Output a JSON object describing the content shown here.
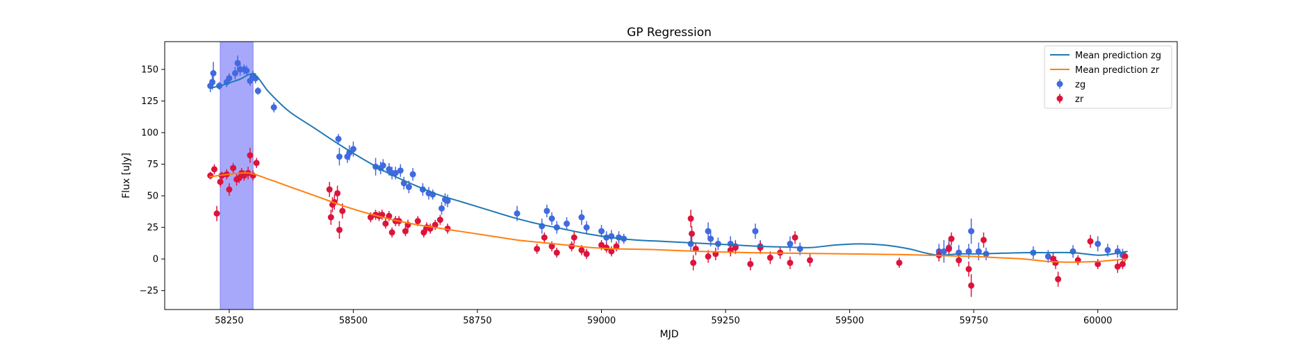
{
  "chart_data": {
    "type": "scatter",
    "title": "GP Regression",
    "xlabel": "MJD",
    "ylabel": "Flux [uJy]",
    "xlim": [
      58120,
      60160
    ],
    "ylim": [
      -40,
      172
    ],
    "xticks": [
      58250,
      58500,
      58750,
      59000,
      59250,
      59500,
      59750,
      60000
    ],
    "yticks": [
      -25,
      0,
      25,
      50,
      75,
      100,
      125,
      150
    ],
    "highlight_span": {
      "x0": 58232,
      "x1": 58298,
      "color": "#a8a8fa"
    },
    "colors": {
      "zg_line": "#1f77b4",
      "zr_line": "#ff7f0e",
      "zg_points": "#4169e1",
      "zr_points": "#dc143c"
    },
    "legend": {
      "location": "top-right",
      "entries": [
        "Mean prediction zg",
        "Mean prediction zr",
        "zg",
        "zr"
      ]
    },
    "series": [
      {
        "name": "Mean prediction zg",
        "kind": "line",
        "x": [
          58210,
          58240,
          58270,
          58300,
          58330,
          58370,
          58420,
          58470,
          58520,
          58570,
          58620,
          58670,
          58720,
          58770,
          58820,
          58870,
          58920,
          58970,
          59020,
          59070,
          59120,
          59170,
          59220,
          59270,
          59320,
          59370,
          59420,
          59470,
          59520,
          59570,
          59620,
          59650,
          59680,
          59720,
          59760,
          59800,
          59850,
          59900,
          59950,
          60000,
          60030,
          60060
        ],
        "y": [
          135,
          138,
          142,
          146,
          132,
          117,
          104,
          91,
          79,
          68,
          59,
          51,
          45,
          39,
          33,
          28,
          24,
          20,
          17,
          15,
          14,
          13,
          12,
          11,
          10,
          9.5,
          9,
          11,
          12,
          11,
          8,
          5,
          3,
          4,
          4,
          4.5,
          5,
          5,
          5,
          3,
          4,
          6
        ]
      },
      {
        "name": "Mean prediction zr",
        "kind": "line",
        "x": [
          58210,
          58250,
          58290,
          58330,
          58380,
          58430,
          58480,
          58530,
          58580,
          58630,
          58680,
          58730,
          58780,
          58830,
          58880,
          58930,
          58980,
          59030,
          59100,
          59200,
          59300,
          59400,
          59500,
          59600,
          59700,
          59750,
          59800,
          59850,
          59900,
          59950,
          60000,
          60030,
          60060
        ],
        "y": [
          65,
          67,
          68,
          63,
          56,
          49,
          42,
          36,
          31,
          27,
          24,
          21,
          18,
          15,
          13,
          11,
          9,
          8,
          7.5,
          6,
          5,
          4.5,
          4,
          3.5,
          2.5,
          2,
          1,
          0,
          -2,
          -2.5,
          -2,
          -1,
          0
        ]
      },
      {
        "name": "zg",
        "kind": "errorbar",
        "x": [
          58212,
          58216,
          58218,
          58230,
          58245,
          58250,
          58262,
          58267,
          58272,
          58280,
          58285,
          58292,
          58298,
          58303,
          58308,
          58340,
          58470,
          58472,
          58488,
          58492,
          58500,
          58545,
          58555,
          58560,
          58572,
          58578,
          58585,
          58595,
          58602,
          58612,
          58620,
          58640,
          58652,
          58660,
          58678,
          58685,
          58690,
          58830,
          58880,
          58890,
          58900,
          58910,
          58930,
          58960,
          58970,
          59000,
          59010,
          59020,
          59035,
          59045,
          59180,
          59215,
          59220,
          59235,
          59260,
          59270,
          59310,
          59320,
          59380,
          59400,
          59680,
          59690,
          59700,
          59720,
          59740,
          59745,
          59760,
          59775,
          59870,
          59900,
          59950,
          60000,
          60020,
          60040,
          60050
        ],
        "y": [
          137,
          140,
          147,
          137,
          140,
          143,
          147,
          155,
          150,
          150,
          149,
          141,
          145,
          143,
          133,
          120,
          95,
          81,
          81,
          84,
          87,
          73,
          72,
          74,
          71,
          68,
          68,
          70,
          60,
          57,
          67,
          55,
          52,
          51,
          40,
          47,
          46,
          36,
          26,
          38,
          32,
          25,
          28,
          33,
          25,
          22,
          17,
          18,
          17,
          16,
          12,
          22,
          16,
          12,
          12,
          10,
          22,
          10,
          12,
          8,
          6,
          6,
          9,
          5,
          6,
          22,
          6,
          4,
          5,
          2,
          6,
          12,
          7,
          6,
          3
        ],
        "yerr": [
          5,
          6,
          9,
          3,
          4,
          4,
          5,
          6,
          5,
          4,
          4,
          4,
          4,
          4,
          3,
          4,
          4,
          7,
          5,
          6,
          6,
          7,
          5,
          5,
          5,
          5,
          5,
          5,
          5,
          5,
          5,
          5,
          5,
          4,
          5,
          5,
          5,
          6,
          6,
          5,
          5,
          5,
          5,
          6,
          5,
          5,
          5,
          5,
          5,
          4,
          6,
          7,
          6,
          5,
          6,
          5,
          6,
          5,
          6,
          5,
          6,
          9,
          6,
          6,
          6,
          10,
          7,
          5,
          5,
          5,
          5,
          6,
          5,
          5,
          5
        ]
      },
      {
        "name": "zr",
        "kind": "errorbar",
        "x": [
          58212,
          58220,
          58225,
          58232,
          58235,
          58245,
          58250,
          58258,
          58265,
          58270,
          58275,
          58280,
          58288,
          58292,
          58298,
          58305,
          58452,
          58455,
          58458,
          58462,
          58468,
          58472,
          58478,
          58535,
          58545,
          58552,
          58558,
          58565,
          58572,
          58578,
          58585,
          58592,
          58605,
          58610,
          58630,
          58642,
          58648,
          58655,
          58665,
          58675,
          58690,
          58870,
          58885,
          58900,
          58910,
          58940,
          58945,
          58960,
          58970,
          59000,
          59010,
          59020,
          59030,
          59180,
          59182,
          59185,
          59190,
          59215,
          59230,
          59260,
          59270,
          59300,
          59320,
          59340,
          59360,
          59380,
          59390,
          59420,
          59600,
          59680,
          59700,
          59705,
          59720,
          59740,
          59745,
          59770,
          59910,
          59915,
          59920,
          59960,
          59985,
          60000,
          60040,
          60050,
          60055
        ],
        "y": [
          66,
          71,
          36,
          61,
          66,
          67,
          55,
          72,
          63,
          64,
          68,
          66,
          68,
          82,
          66,
          76,
          55,
          33,
          43,
          45,
          52,
          23,
          38,
          33,
          35,
          34,
          35,
          28,
          34,
          21,
          30,
          30,
          22,
          27,
          30,
          21,
          25,
          24,
          27,
          31,
          24,
          8,
          17,
          10,
          5,
          10,
          17,
          7,
          4,
          11,
          9,
          6,
          10,
          32,
          20,
          -3,
          8,
          2,
          4,
          7,
          9,
          -4,
          9,
          1,
          5,
          -3,
          17,
          -1,
          -3,
          3,
          8,
          16,
          -1,
          -8,
          -21,
          15,
          0,
          -3,
          -16,
          -1,
          14,
          -4,
          -6,
          -4,
          2
        ],
        "yerr": [
          3,
          4,
          6,
          4,
          3,
          4,
          5,
          4,
          5,
          4,
          4,
          4,
          5,
          6,
          4,
          4,
          6,
          6,
          6,
          6,
          6,
          7,
          6,
          4,
          4,
          4,
          4,
          4,
          4,
          4,
          4,
          4,
          4,
          4,
          4,
          4,
          4,
          4,
          4,
          4,
          4,
          4,
          4,
          4,
          4,
          4,
          5,
          4,
          4,
          4,
          4,
          4,
          4,
          7,
          6,
          6,
          5,
          5,
          5,
          5,
          5,
          5,
          5,
          5,
          5,
          5,
          5,
          5,
          4,
          5,
          5,
          5,
          5,
          6,
          9,
          6,
          5,
          5,
          6,
          4,
          5,
          4,
          5,
          4,
          4
        ]
      }
    ]
  }
}
